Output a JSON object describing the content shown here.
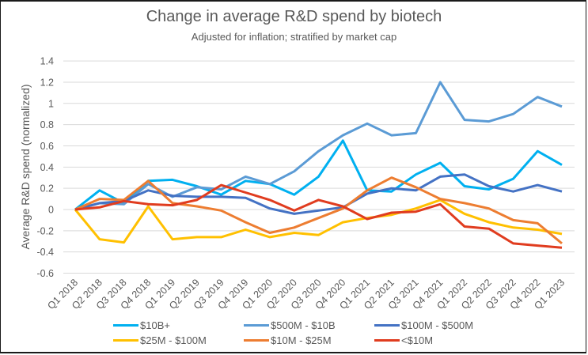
{
  "chart_data": {
    "type": "line",
    "title": "Change in average R&D spend by biotech",
    "subtitle": "Adjusted for inflation; stratified by market cap",
    "xlabel": "",
    "ylabel": "Average R&D spend (normalized)",
    "ylim": [
      -0.6,
      1.4
    ],
    "yticks": [
      1.4,
      1.2,
      1,
      0.8,
      0.6,
      0.4,
      0.2,
      0,
      -0.2,
      -0.4,
      -0.6
    ],
    "ytick_labels": [
      "1.4",
      "1.2",
      "1",
      "0.8",
      "0.6",
      "0.4",
      "0.2",
      "0",
      "-0.2",
      "-0.4",
      "-0.6"
    ],
    "grid": true,
    "legend_position": "bottom",
    "categories": [
      "Q1 2018",
      "Q2 2018",
      "Q3 2018",
      "Q4 2018",
      "Q1 2019",
      "Q2 2019",
      "Q3 2019",
      "Q4 2019",
      "Q1 2020",
      "Q2 2020",
      "Q3 2020",
      "Q4 2020",
      "Q1 2021",
      "Q2 2021",
      "Q3 2021",
      "Q4 2021",
      "Q1 2022",
      "Q2 2022",
      "Q3 2022",
      "Q4 2022",
      "Q1 2023"
    ],
    "series": [
      {
        "name": "$10B+",
        "color": "#00B0F0",
        "values": [
          0,
          0.18,
          0.06,
          0.27,
          0.28,
          0.22,
          0.14,
          0.27,
          0.24,
          0.14,
          0.31,
          0.65,
          0.18,
          0.17,
          0.33,
          0.44,
          0.22,
          0.19,
          0.29,
          0.55,
          0.42
        ]
      },
      {
        "name": "$500M - $10B",
        "color": "#5B9BD5",
        "values": [
          0,
          0.06,
          0.05,
          0.24,
          0.12,
          0.21,
          0.19,
          0.31,
          0.24,
          0.36,
          0.55,
          0.7,
          0.81,
          0.7,
          0.72,
          1.2,
          0.845,
          0.83,
          0.9,
          1.06,
          0.97
        ]
      },
      {
        "name": "$100M - $500M",
        "color": "#4472C4",
        "values": [
          0,
          0.06,
          0.08,
          0.18,
          0.13,
          0.12,
          0.12,
          0.11,
          0.01,
          -0.04,
          -0.01,
          0.02,
          0.15,
          0.2,
          0.18,
          0.31,
          0.33,
          0.22,
          0.17,
          0.23,
          0.17
        ]
      },
      {
        "name": "$25M - $100M",
        "color": "#FFC000",
        "values": [
          0,
          -0.28,
          -0.31,
          0.03,
          -0.28,
          -0.26,
          -0.26,
          -0.19,
          -0.26,
          -0.22,
          -0.24,
          -0.12,
          -0.08,
          -0.05,
          0.01,
          0.09,
          -0.04,
          -0.12,
          -0.17,
          -0.19,
          -0.23
        ]
      },
      {
        "name": "$10M - $25M",
        "color": "#ED7D31",
        "values": [
          0,
          0.1,
          0.09,
          0.27,
          0.06,
          0.03,
          -0.01,
          -0.12,
          -0.22,
          -0.17,
          -0.08,
          0.01,
          0.18,
          0.3,
          0.21,
          0.1,
          0.06,
          0.01,
          -0.1,
          -0.13,
          -0.32
        ]
      },
      {
        "name": "<$10M",
        "color": "#E03C1F",
        "values": [
          0,
          0.02,
          0.08,
          0.05,
          0.04,
          0.09,
          0.23,
          0.16,
          0.09,
          -0.01,
          0.09,
          0.03,
          -0.09,
          -0.03,
          -0.02,
          0.05,
          -0.16,
          -0.18,
          -0.32,
          -0.34,
          -0.36
        ]
      }
    ]
  }
}
